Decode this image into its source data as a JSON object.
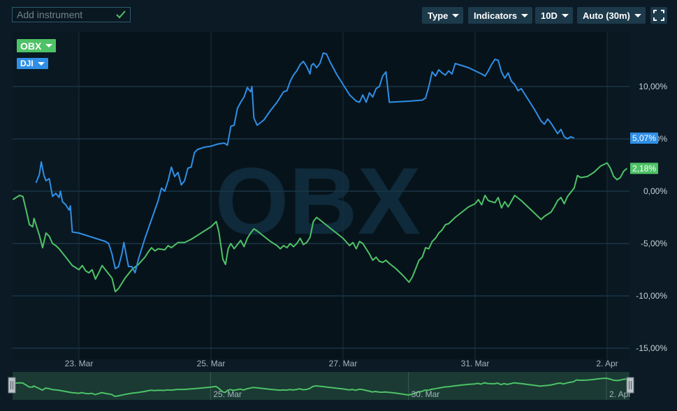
{
  "toolbar": {
    "add_instrument_placeholder": "Add instrument",
    "type_label": "Type",
    "indicators_label": "Indicators",
    "period_label": "10D",
    "interval_label": "Auto (30m)"
  },
  "colors": {
    "obx": "#4ec266",
    "dji": "#2f8fe6",
    "background": "#0b1a25"
  },
  "chart_data": {
    "type": "line",
    "watermark": "OBX",
    "ylabel": "",
    "xlabel": "",
    "y_ticks": [
      "10,00%",
      "5,00%",
      "0,00%",
      "-5,00%",
      "-10,00%",
      "-15,00%"
    ],
    "y_tick_values": [
      10,
      5,
      0,
      -5,
      -10,
      -15
    ],
    "ylim": [
      -15,
      15
    ],
    "x_tick_labels": [
      "23. Mar",
      "25. Mar",
      "27. Mar",
      "31. Mar",
      "2. Apr"
    ],
    "x_tick_positions": [
      1,
      3,
      5,
      7,
      9
    ],
    "xlim": [
      0,
      9.35
    ],
    "grid": true,
    "series": [
      {
        "name": "OBX",
        "last_value_label": "2,18%",
        "points": [
          [
            0,
            -0.8
          ],
          [
            0.1,
            -0.4
          ],
          [
            0.15,
            -0.5
          ],
          [
            0.2,
            -1.8
          ],
          [
            0.25,
            -3.2
          ],
          [
            0.3,
            -3.4
          ],
          [
            0.32,
            -2.6
          ],
          [
            0.4,
            -4.2
          ],
          [
            0.45,
            -5.4
          ],
          [
            0.5,
            -4.0
          ],
          [
            0.55,
            -4.3
          ],
          [
            0.6,
            -5.0
          ],
          [
            0.65,
            -5.2
          ],
          [
            0.7,
            -5.5
          ],
          [
            0.8,
            -6.3
          ],
          [
            0.9,
            -7.1
          ],
          [
            0.95,
            -7.3
          ],
          [
            1.0,
            -7.5
          ],
          [
            1.05,
            -7.1
          ],
          [
            1.1,
            -7.6
          ],
          [
            1.15,
            -7.8
          ],
          [
            1.2,
            -7.5
          ],
          [
            1.25,
            -8.4
          ],
          [
            1.3,
            -7.8
          ],
          [
            1.35,
            -7.1
          ],
          [
            1.4,
            -7.5
          ],
          [
            1.5,
            -8.3
          ],
          [
            1.55,
            -9.6
          ],
          [
            1.6,
            -9.3
          ],
          [
            1.7,
            -8.3
          ],
          [
            1.8,
            -7.5
          ],
          [
            1.9,
            -7.0
          ],
          [
            2.0,
            -6.3
          ],
          [
            2.05,
            -5.8
          ],
          [
            2.1,
            -5.4
          ],
          [
            2.15,
            -5.7
          ],
          [
            2.2,
            -5.5
          ],
          [
            2.3,
            -5.6
          ],
          [
            2.35,
            -5.2
          ],
          [
            2.4,
            -5.4
          ],
          [
            2.5,
            -4.9
          ],
          [
            2.6,
            -4.9
          ],
          [
            2.7,
            -4.6
          ],
          [
            2.8,
            -4.2
          ],
          [
            2.9,
            -3.8
          ],
          [
            3.0,
            -3.4
          ],
          [
            3.08,
            -2.9
          ],
          [
            3.12,
            -3.9
          ],
          [
            3.18,
            -6.5
          ],
          [
            3.22,
            -7.0
          ],
          [
            3.26,
            -5.5
          ],
          [
            3.3,
            -5.0
          ],
          [
            3.35,
            -5.5
          ],
          [
            3.45,
            -4.7
          ],
          [
            3.5,
            -5.3
          ],
          [
            3.55,
            -4.5
          ],
          [
            3.6,
            -4.0
          ],
          [
            3.65,
            -3.6
          ],
          [
            3.7,
            -3.8
          ],
          [
            3.8,
            -4.3
          ],
          [
            3.9,
            -4.8
          ],
          [
            4.0,
            -5.2
          ],
          [
            4.05,
            -5.5
          ],
          [
            4.1,
            -5.2
          ],
          [
            4.15,
            -5.4
          ],
          [
            4.2,
            -5.0
          ],
          [
            4.25,
            -5.3
          ],
          [
            4.3,
            -5.0
          ],
          [
            4.35,
            -4.5
          ],
          [
            4.4,
            -5.1
          ],
          [
            4.45,
            -4.9
          ],
          [
            4.5,
            -4.4
          ],
          [
            4.55,
            -2.9
          ],
          [
            4.6,
            -2.5
          ],
          [
            4.7,
            -3.0
          ],
          [
            4.8,
            -3.5
          ],
          [
            4.9,
            -4.0
          ],
          [
            5.0,
            -4.5
          ],
          [
            5.1,
            -5.2
          ],
          [
            5.15,
            -4.9
          ],
          [
            5.2,
            -5.5
          ],
          [
            5.25,
            -4.8
          ],
          [
            5.3,
            -5.0
          ],
          [
            5.4,
            -6.0
          ],
          [
            5.45,
            -6.6
          ],
          [
            5.5,
            -6.3
          ],
          [
            5.55,
            -6.7
          ],
          [
            5.6,
            -6.8
          ],
          [
            5.65,
            -6.6
          ],
          [
            5.7,
            -6.9
          ],
          [
            5.8,
            -7.4
          ],
          [
            5.9,
            -8.0
          ],
          [
            6.0,
            -8.7
          ],
          [
            6.05,
            -8.2
          ],
          [
            6.1,
            -7.4
          ],
          [
            6.15,
            -6.6
          ],
          [
            6.2,
            -6.3
          ],
          [
            6.25,
            -5.4
          ],
          [
            6.3,
            -5.5
          ],
          [
            6.35,
            -4.8
          ],
          [
            6.4,
            -4.5
          ],
          [
            6.45,
            -4.0
          ],
          [
            6.5,
            -3.7
          ],
          [
            6.55,
            -3.2
          ],
          [
            6.6,
            -3.1
          ],
          [
            6.7,
            -2.5
          ],
          [
            6.8,
            -2.0
          ],
          [
            6.9,
            -1.5
          ],
          [
            7.0,
            -1.2
          ],
          [
            7.05,
            -0.8
          ],
          [
            7.1,
            -1.3
          ],
          [
            7.15,
            -0.4
          ],
          [
            7.2,
            -0.9
          ],
          [
            7.3,
            -1.1
          ],
          [
            7.35,
            -0.6
          ],
          [
            7.4,
            -1.6
          ],
          [
            7.45,
            -1.0
          ],
          [
            7.5,
            -1.5
          ],
          [
            7.6,
            -0.4
          ],
          [
            7.7,
            -0.9
          ],
          [
            7.8,
            -1.5
          ],
          [
            7.9,
            -2.1
          ],
          [
            8.0,
            -2.7
          ],
          [
            8.05,
            -2.4
          ],
          [
            8.1,
            -2.2
          ],
          [
            8.15,
            -2.0
          ],
          [
            8.2,
            -1.5
          ],
          [
            8.25,
            -0.9
          ],
          [
            8.3,
            -0.6
          ],
          [
            8.35,
            -1.2
          ],
          [
            8.4,
            -0.5
          ],
          [
            8.45,
            -0.1
          ],
          [
            8.5,
            0.3
          ],
          [
            8.55,
            1.5
          ],
          [
            8.6,
            1.3
          ],
          [
            8.7,
            1.4
          ],
          [
            8.8,
            1.8
          ],
          [
            8.9,
            2.4
          ],
          [
            9.0,
            2.7
          ],
          [
            9.05,
            2.2
          ],
          [
            9.1,
            1.4
          ],
          [
            9.15,
            1.1
          ],
          [
            9.2,
            1.3
          ],
          [
            9.25,
            1.9
          ],
          [
            9.3,
            2.18
          ]
        ]
      },
      {
        "name": "DJI",
        "last_value_label": "5,07%",
        "points": [
          [
            0.35,
            0.8
          ],
          [
            0.4,
            1.6
          ],
          [
            0.43,
            2.8
          ],
          [
            0.47,
            1.5
          ],
          [
            0.5,
            1.0
          ],
          [
            0.55,
            1.2
          ],
          [
            0.6,
            -0.5
          ],
          [
            0.65,
            -0.2
          ],
          [
            0.7,
            -0.6
          ],
          [
            0.72,
            0.0
          ],
          [
            0.75,
            -1.0
          ],
          [
            0.8,
            -1.3
          ],
          [
            0.85,
            -1.8
          ],
          [
            0.87,
            -1.4
          ],
          [
            0.9,
            -3.9
          ],
          [
            1.0,
            -4.0
          ],
          [
            1.1,
            -4.2
          ],
          [
            1.2,
            -4.4
          ],
          [
            1.3,
            -4.6
          ],
          [
            1.4,
            -4.8
          ],
          [
            1.45,
            -5.0
          ],
          [
            1.5,
            -6.0
          ],
          [
            1.55,
            -7.4
          ],
          [
            1.6,
            -7.2
          ],
          [
            1.65,
            -6.0
          ],
          [
            1.68,
            -4.9
          ],
          [
            1.72,
            -6.2
          ],
          [
            1.75,
            -7.2
          ],
          [
            1.8,
            -7.2
          ],
          [
            1.85,
            -7.8
          ],
          [
            1.9,
            -6.5
          ],
          [
            2.0,
            -4.5
          ],
          [
            2.1,
            -2.7
          ],
          [
            2.2,
            -0.9
          ],
          [
            2.25,
            0.3
          ],
          [
            2.3,
            0.0
          ],
          [
            2.35,
            1.0
          ],
          [
            2.4,
            2.3
          ],
          [
            2.45,
            1.4
          ],
          [
            2.5,
            1.8
          ],
          [
            2.55,
            0.6
          ],
          [
            2.6,
            1.0
          ],
          [
            2.65,
            2.2
          ],
          [
            2.7,
            2.3
          ],
          [
            2.75,
            3.7
          ],
          [
            2.8,
            4.0
          ],
          [
            2.9,
            4.2
          ],
          [
            3.0,
            4.3
          ],
          [
            3.1,
            4.5
          ],
          [
            3.2,
            4.6
          ],
          [
            3.25,
            4.4
          ],
          [
            3.3,
            6.2
          ],
          [
            3.35,
            6.3
          ],
          [
            3.4,
            7.9
          ],
          [
            3.45,
            8.5
          ],
          [
            3.5,
            9.0
          ],
          [
            3.55,
            9.9
          ],
          [
            3.6,
            9.5
          ],
          [
            3.62,
            10.0
          ],
          [
            3.65,
            7.0
          ],
          [
            3.7,
            6.3
          ],
          [
            3.8,
            6.8
          ],
          [
            3.9,
            7.7
          ],
          [
            4.0,
            8.5
          ],
          [
            4.1,
            9.5
          ],
          [
            4.15,
            9.6
          ],
          [
            4.2,
            10.5
          ],
          [
            4.25,
            11.1
          ],
          [
            4.3,
            11.5
          ],
          [
            4.35,
            12.1
          ],
          [
            4.4,
            12.4
          ],
          [
            4.45,
            11.9
          ],
          [
            4.5,
            11.2
          ],
          [
            4.52,
            12.0
          ],
          [
            4.55,
            12.2
          ],
          [
            4.6,
            11.8
          ],
          [
            4.65,
            12.2
          ],
          [
            4.7,
            13.2
          ],
          [
            4.75,
            13.1
          ],
          [
            4.8,
            12.4
          ],
          [
            4.9,
            11.2
          ],
          [
            5.0,
            10.2
          ],
          [
            5.1,
            9.2
          ],
          [
            5.2,
            8.6
          ],
          [
            5.25,
            8.5
          ],
          [
            5.3,
            9.2
          ],
          [
            5.35,
            8.5
          ],
          [
            5.4,
            9.4
          ],
          [
            5.45,
            9.0
          ],
          [
            5.5,
            9.8
          ],
          [
            5.55,
            10.0
          ],
          [
            5.6,
            11.0
          ],
          [
            5.65,
            11.4
          ],
          [
            5.7,
            8.5
          ],
          [
            6.0,
            8.6
          ],
          [
            6.2,
            8.7
          ],
          [
            6.25,
            8.9
          ],
          [
            6.3,
            10.0
          ],
          [
            6.35,
            11.4
          ],
          [
            6.4,
            11.0
          ],
          [
            6.45,
            11.6
          ],
          [
            6.5,
            11.3
          ],
          [
            6.55,
            11.1
          ],
          [
            6.6,
            11.5
          ],
          [
            6.65,
            11.2
          ],
          [
            6.7,
            12.2
          ],
          [
            6.8,
            12.0
          ],
          [
            6.9,
            11.8
          ],
          [
            7.0,
            11.5
          ],
          [
            7.1,
            11.2
          ],
          [
            7.15,
            11.0
          ],
          [
            7.2,
            11.5
          ],
          [
            7.25,
            12.1
          ],
          [
            7.3,
            12.6
          ],
          [
            7.35,
            12.5
          ],
          [
            7.4,
            11.4
          ],
          [
            7.45,
            10.8
          ],
          [
            7.5,
            11.3
          ],
          [
            7.55,
            10.5
          ],
          [
            7.6,
            10.2
          ],
          [
            7.65,
            9.6
          ],
          [
            7.7,
            9.8
          ],
          [
            7.8,
            8.8
          ],
          [
            7.9,
            7.8
          ],
          [
            8.0,
            6.7
          ],
          [
            8.05,
            6.4
          ],
          [
            8.1,
            6.9
          ],
          [
            8.15,
            6.5
          ],
          [
            8.2,
            6.0
          ],
          [
            8.25,
            5.5
          ],
          [
            8.3,
            5.9
          ],
          [
            8.35,
            5.2
          ],
          [
            8.4,
            5.0
          ],
          [
            8.45,
            5.2
          ],
          [
            8.5,
            5.07
          ]
        ]
      }
    ],
    "navigator": {
      "x_tick_labels": [
        "25. Mar",
        "30. Mar",
        "2. Apr"
      ],
      "x_tick_positions": [
        3,
        6,
        9
      ]
    }
  }
}
